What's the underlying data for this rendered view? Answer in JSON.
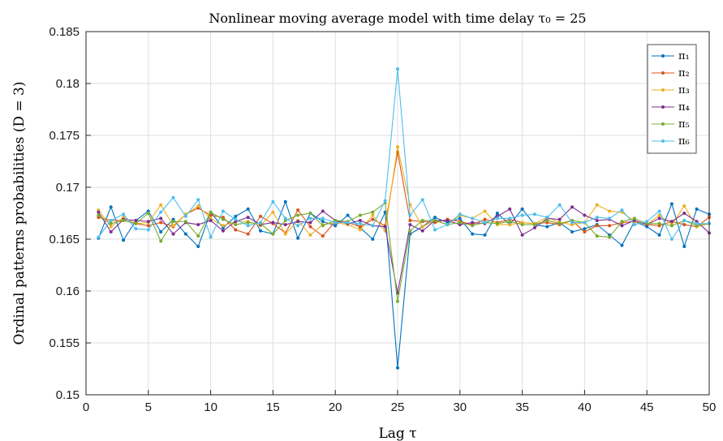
{
  "chart_data": {
    "type": "line",
    "title": "Nonlinear moving average model with time delay τ₀ = 25",
    "xlabel": "Lag τ",
    "ylabel": "Ordinal patterns probabilities (D = 3)",
    "xlim": [
      0,
      50
    ],
    "ylim": [
      0.15,
      0.185
    ],
    "xticks": [
      "0",
      "5",
      "10",
      "15",
      "20",
      "25",
      "30",
      "35",
      "40",
      "45",
      "50"
    ],
    "yticks": [
      "0.15",
      "0.155",
      "0.16",
      "0.165",
      "0.17",
      "0.175",
      "0.18",
      "0.185"
    ],
    "grid": true,
    "legend_position": "top-right",
    "x": [
      1,
      2,
      3,
      4,
      5,
      6,
      7,
      8,
      9,
      10,
      11,
      12,
      13,
      14,
      15,
      16,
      17,
      18,
      19,
      20,
      21,
      22,
      23,
      24,
      25,
      26,
      27,
      28,
      29,
      30,
      31,
      32,
      33,
      34,
      35,
      36,
      37,
      38,
      39,
      40,
      41,
      42,
      43,
      44,
      45,
      46,
      47,
      48,
      49,
      50
    ],
    "series": [
      {
        "name": "π₁",
        "color": "#0072BD",
        "values": [
          0.1651,
          0.1681,
          0.1649,
          0.1668,
          0.1677,
          0.1657,
          0.1669,
          0.1655,
          0.1643,
          0.1676,
          0.1661,
          0.1672,
          0.1679,
          0.1658,
          0.1655,
          0.1686,
          0.1651,
          0.1675,
          0.1667,
          0.1663,
          0.1673,
          0.1661,
          0.165,
          0.1676,
          0.1526,
          0.1655,
          0.1662,
          0.1671,
          0.1666,
          0.167,
          0.1655,
          0.1654,
          0.1675,
          0.1664,
          0.1679,
          0.1664,
          0.1662,
          0.1666,
          0.1657,
          0.166,
          0.1664,
          0.1654,
          0.1644,
          0.1667,
          0.1662,
          0.1654,
          0.1684,
          0.1643,
          0.1679,
          0.1674
        ]
      },
      {
        "name": "π₂",
        "color": "#D95319",
        "values": [
          0.1671,
          0.1668,
          0.1668,
          0.1665,
          0.1663,
          0.1666,
          0.1662,
          0.1674,
          0.168,
          0.1673,
          0.1671,
          0.1659,
          0.1655,
          0.1672,
          0.1665,
          0.1656,
          0.1678,
          0.1662,
          0.1653,
          0.1667,
          0.1666,
          0.1662,
          0.1669,
          0.1663,
          0.1734,
          0.1668,
          0.1667,
          0.1666,
          0.1669,
          0.1667,
          0.1664,
          0.1669,
          0.1666,
          0.1669,
          0.1666,
          0.1665,
          0.1666,
          0.1664,
          0.1668,
          0.1657,
          0.1663,
          0.1663,
          0.1666,
          0.1667,
          0.1664,
          0.1663,
          0.1667,
          0.1664,
          0.1662,
          0.1671
        ]
      },
      {
        "name": "π₃",
        "color": "#EDB120",
        "values": [
          0.1678,
          0.1662,
          0.1671,
          0.1665,
          0.1666,
          0.1683,
          0.1663,
          0.1674,
          0.1682,
          0.167,
          0.1663,
          0.1667,
          0.1667,
          0.1663,
          0.1676,
          0.1655,
          0.1668,
          0.1654,
          0.1664,
          0.1666,
          0.1664,
          0.1659,
          0.1673,
          0.1658,
          0.1739,
          0.1683,
          0.1662,
          0.1668,
          0.1664,
          0.1673,
          0.167,
          0.1677,
          0.1664,
          0.1664,
          0.1666,
          0.1665,
          0.1671,
          0.1666,
          0.1664,
          0.1666,
          0.1683,
          0.1677,
          0.1676,
          0.1667,
          0.1664,
          0.1673,
          0.1664,
          0.1682,
          0.1662,
          0.1665
        ]
      },
      {
        "name": "π₄",
        "color": "#7E2F8E",
        "values": [
          0.1676,
          0.1657,
          0.1669,
          0.1668,
          0.1667,
          0.167,
          0.1655,
          0.1666,
          0.1664,
          0.1668,
          0.1658,
          0.1667,
          0.1671,
          0.1664,
          0.1666,
          0.1664,
          0.1667,
          0.1666,
          0.1677,
          0.1668,
          0.1665,
          0.1668,
          0.1663,
          0.1662,
          0.1598,
          0.1664,
          0.1658,
          0.1668,
          0.1668,
          0.1664,
          0.1666,
          0.1665,
          0.1672,
          0.1679,
          0.1654,
          0.1661,
          0.167,
          0.1669,
          0.1681,
          0.1673,
          0.1668,
          0.1669,
          0.1663,
          0.1668,
          0.1664,
          0.167,
          0.1667,
          0.1675,
          0.1667,
          0.1656
        ]
      },
      {
        "name": "π₅",
        "color": "#77AC30",
        "values": [
          0.1673,
          0.1665,
          0.1668,
          0.1665,
          0.1675,
          0.1648,
          0.1667,
          0.1667,
          0.1653,
          0.1676,
          0.1669,
          0.1664,
          0.1666,
          0.1665,
          0.1655,
          0.1668,
          0.1673,
          0.1675,
          0.1663,
          0.1668,
          0.1667,
          0.1673,
          0.1676,
          0.1685,
          0.159,
          0.1658,
          0.1668,
          0.1668,
          0.1664,
          0.1666,
          0.1663,
          0.1666,
          0.1665,
          0.1667,
          0.1664,
          0.1664,
          0.1668,
          0.1665,
          0.1668,
          0.1666,
          0.1653,
          0.1652,
          0.1667,
          0.167,
          0.1665,
          0.1665,
          0.1663,
          0.1668,
          0.1663,
          0.1665
        ]
      },
      {
        "name": "π₆",
        "color": "#4DBEEE",
        "values": [
          0.1652,
          0.1668,
          0.1674,
          0.166,
          0.1659,
          0.1676,
          0.169,
          0.1672,
          0.1688,
          0.1652,
          0.1677,
          0.1669,
          0.1663,
          0.1666,
          0.1686,
          0.167,
          0.1663,
          0.167,
          0.167,
          0.1666,
          0.1666,
          0.1665,
          0.1663,
          0.1687,
          0.1814,
          0.1673,
          0.1688,
          0.1659,
          0.1664,
          0.1674,
          0.167,
          0.1666,
          0.167,
          0.167,
          0.1673,
          0.1674,
          0.1671,
          0.1683,
          0.1666,
          0.1666,
          0.1671,
          0.167,
          0.1678,
          0.1664,
          0.1667,
          0.1677,
          0.165,
          0.1668,
          0.1665,
          0.1665
        ]
      }
    ]
  }
}
